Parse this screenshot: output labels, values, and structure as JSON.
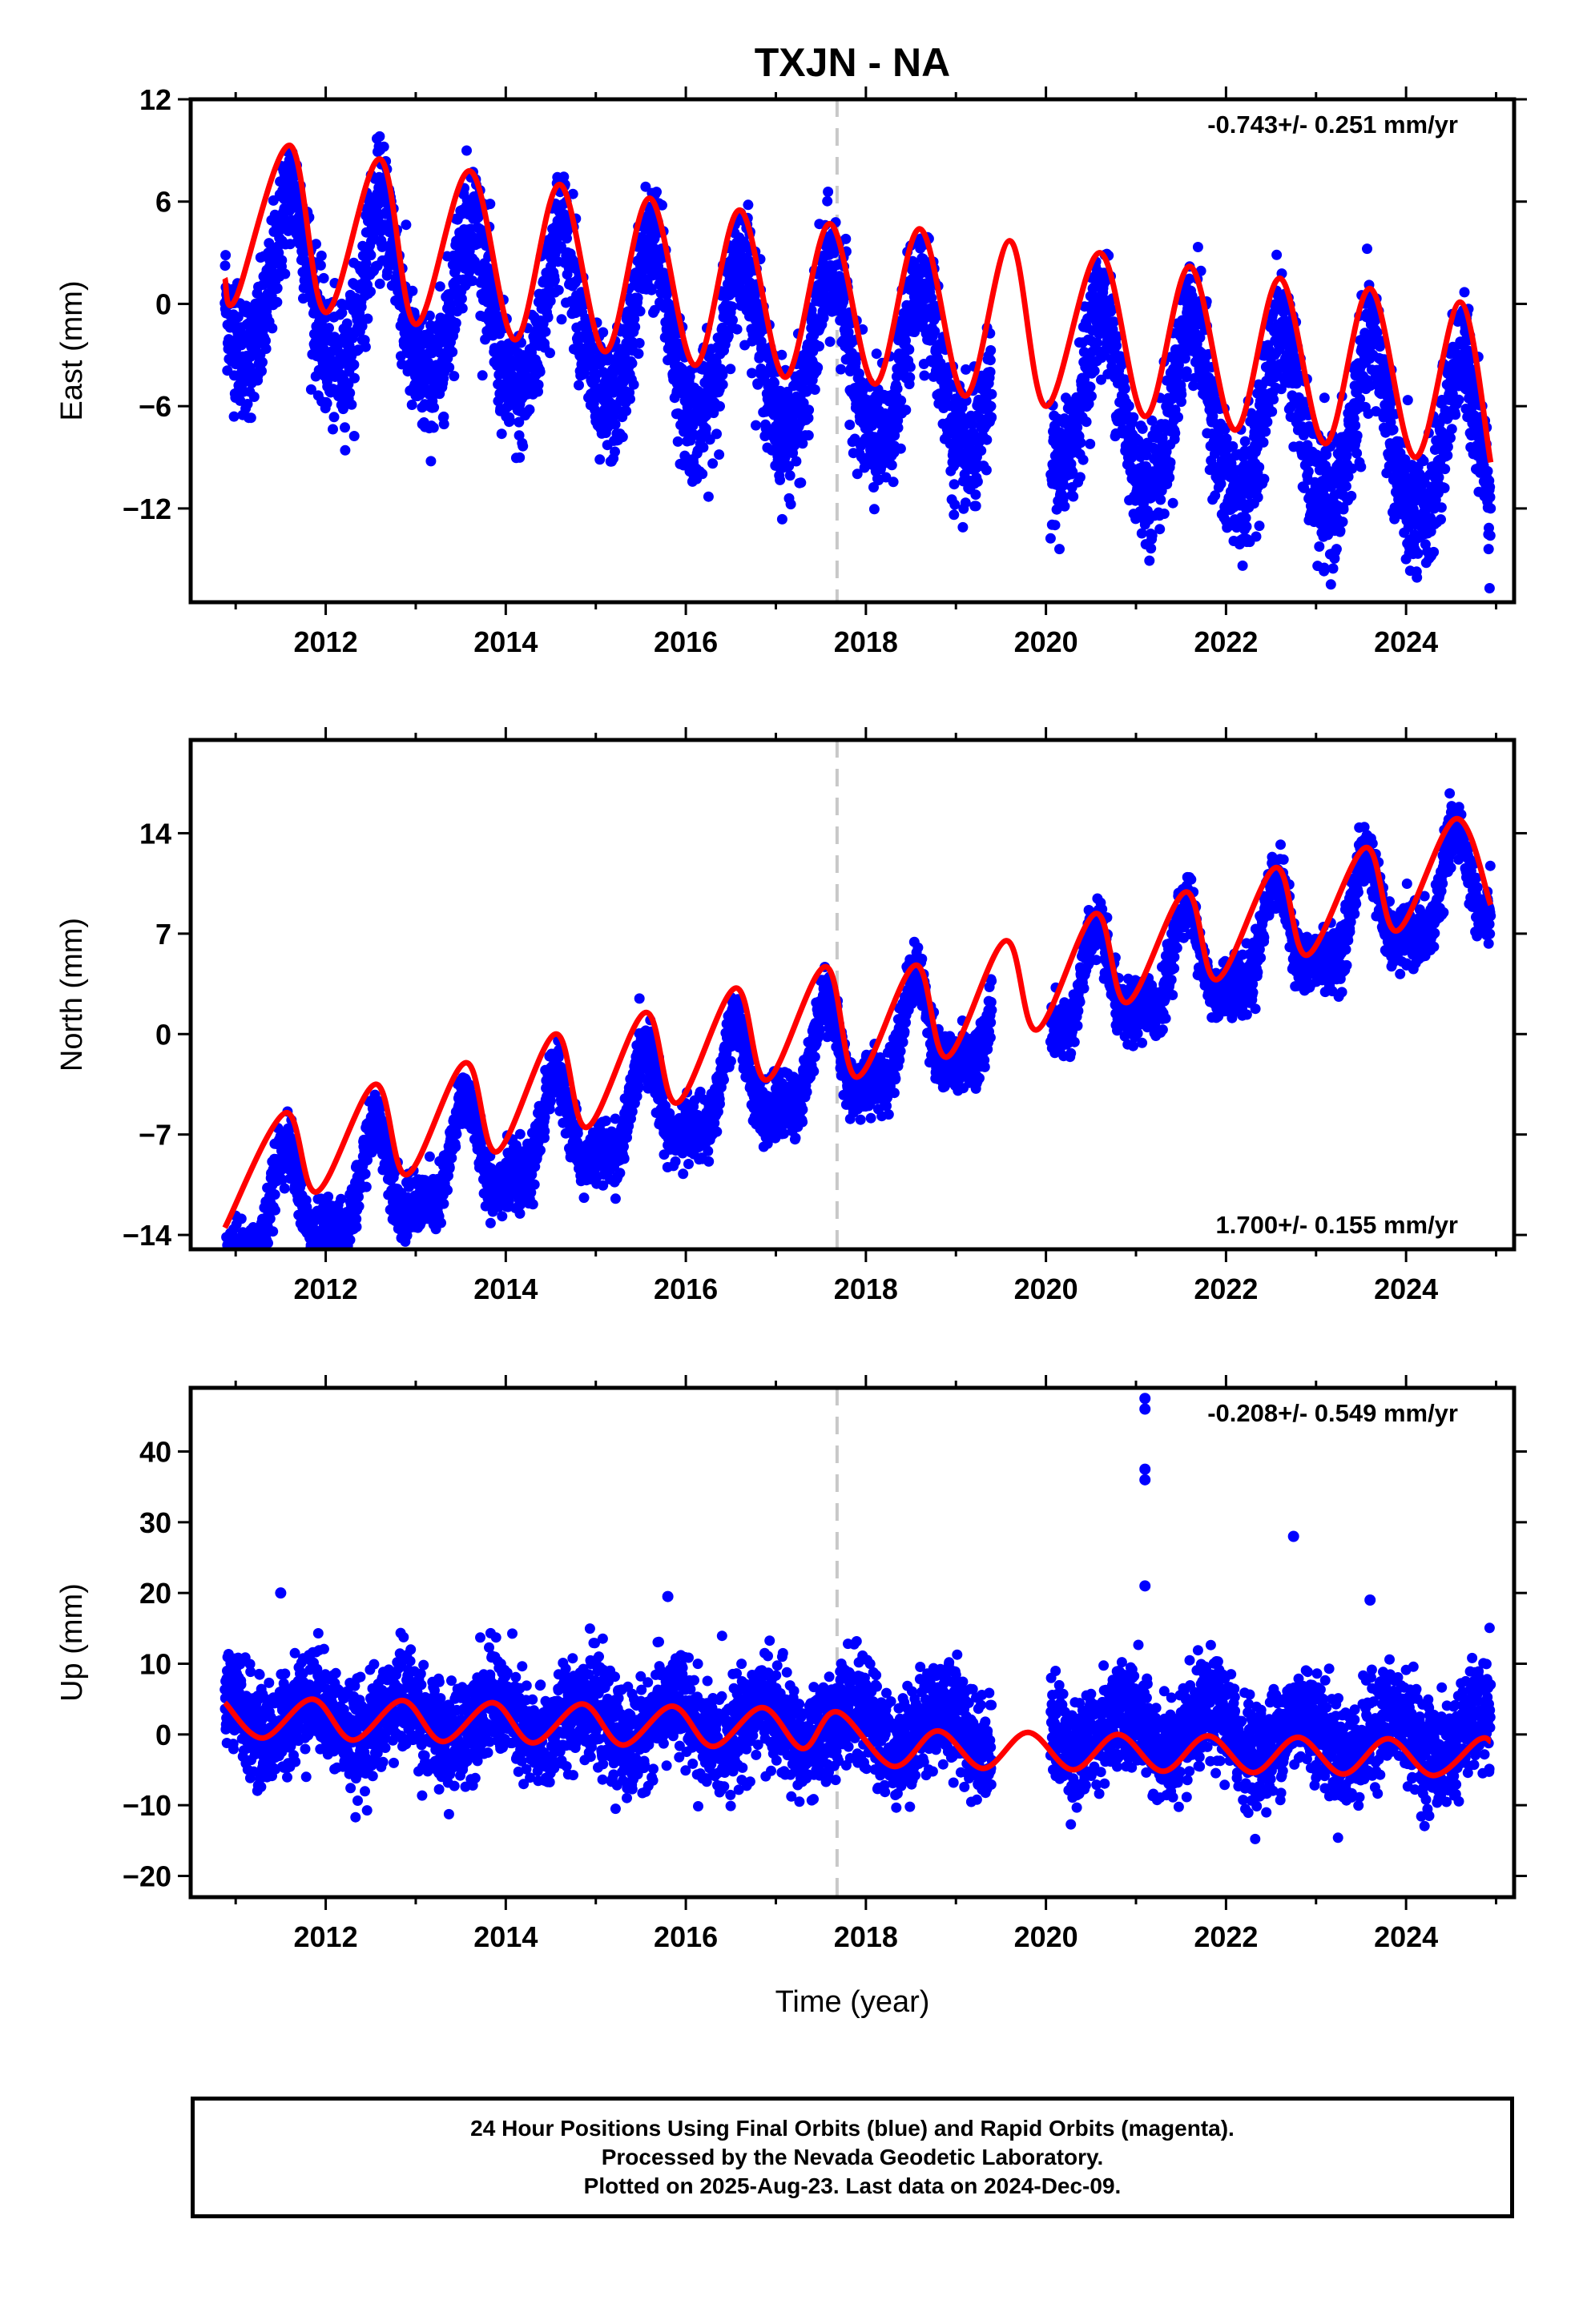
{
  "title": "TXJN - NA",
  "xlabel": "Time (year)",
  "colors": {
    "final_orbits": "#0000ff",
    "model": "#ff0000",
    "break_line": "#c8c8c8"
  },
  "caption": {
    "line1": "24 Hour Positions Using Final Orbits (blue) and Rapid Orbits (magenta).",
    "line2": "Processed by the Nevada Geodetic Laboratory.",
    "line3": "Plotted on 2025-Aug-23. Last data on 2024-Dec-09."
  },
  "chart_data": [
    {
      "type": "scatter",
      "component": "east",
      "ylabel": "East (mm)",
      "xlim": [
        2010.5,
        2025.2
      ],
      "ylim": [
        -17.5,
        12
      ],
      "xticks": [
        2012,
        2014,
        2016,
        2018,
        2020,
        2022,
        2024
      ],
      "yticks": [
        -12,
        -6,
        0,
        6,
        12
      ],
      "ytick_labels": [
        "−12",
        "−6",
        "0",
        "6",
        "12"
      ],
      "rate_label": "-0.743+/- 0.251 mm/yr",
      "rate_position": "top-right",
      "data_span": [
        2010.88,
        2024.94
      ],
      "data_gap": [
        2019.4,
        2020.05
      ],
      "break_epoch": 2017.68,
      "model": {
        "rate": -0.743,
        "offset_at_2010_9": 1.5,
        "annual_amplitude": 5.0,
        "annual_peak": 2011.62,
        "semiannual_amplitude": 0.6,
        "scatter_sigma": 1.8
      },
      "model_curve_x": [
        2010.88,
        2011.0,
        2011.6,
        2012.0,
        2012.6,
        2013.0,
        2013.6,
        2014.1,
        2014.6,
        2015.1,
        2015.6,
        2016.1,
        2016.6,
        2017.1,
        2017.6,
        2018.1,
        2018.6,
        2019.1,
        2019.6,
        2020.0,
        2020.6,
        2021.1,
        2021.6,
        2022.1,
        2022.6,
        2023.1,
        2023.6,
        2024.1,
        2024.6,
        2024.94
      ],
      "model_curve_y": [
        1.5,
        0.3,
        9.3,
        -0.5,
        8.5,
        -1.2,
        7.8,
        -2.1,
        7.0,
        -2.8,
        6.2,
        -3.6,
        5.5,
        -4.3,
        4.7,
        -4.7,
        4.4,
        -5.4,
        3.7,
        -6.0,
        3.0,
        -6.6,
        2.2,
        -7.4,
        1.5,
        -8.2,
        0.9,
        -9.0,
        0.1,
        -9.3
      ]
    },
    {
      "type": "scatter",
      "component": "north",
      "ylabel": "North (mm)",
      "xlim": [
        2010.5,
        2025.2
      ],
      "ylim": [
        -15,
        20.5
      ],
      "xticks": [
        2012,
        2014,
        2016,
        2018,
        2020,
        2022,
        2024
      ],
      "yticks": [
        -14,
        -7,
        0,
        7,
        14
      ],
      "ytick_labels": [
        "−14",
        "−7",
        "0",
        "7",
        "14"
      ],
      "rate_label": "1.700+/- 0.155 mm/yr",
      "rate_position": "bottom-right",
      "data_span": [
        2010.88,
        2024.94
      ],
      "data_gap": [
        2019.4,
        2020.05
      ],
      "break_epoch": 2017.68,
      "model": {
        "rate": 1.7,
        "offset_at_2010_9": -13.5,
        "annual_amplitude": 3.2,
        "annual_peak": 2011.55,
        "semiannual_amplitude": 1.4,
        "scatter_sigma": 1.0
      },
      "model_curve_x": [
        2010.88,
        2011.55,
        2011.9,
        2012.55,
        2012.9,
        2013.55,
        2013.9,
        2014.55,
        2014.9,
        2015.55,
        2015.9,
        2016.55,
        2016.9,
        2017.55,
        2017.9,
        2018.55,
        2018.9,
        2019.55,
        2019.9,
        2020.55,
        2020.9,
        2021.55,
        2021.9,
        2022.55,
        2022.9,
        2023.55,
        2023.9,
        2024.55,
        2024.94
      ],
      "model_curve_y": [
        -13.5,
        -5.5,
        -11.0,
        -3.5,
        -9.8,
        -2.0,
        -8.2,
        0.0,
        -6.5,
        1.5,
        -4.8,
        3.2,
        -3.2,
        4.7,
        -3.0,
        4.8,
        -1.6,
        6.5,
        0.3,
        8.4,
        2.2,
        9.9,
        3.8,
        11.6,
        5.5,
        13.0,
        7.2,
        15.0,
        9.0
      ]
    },
    {
      "type": "scatter",
      "component": "up",
      "ylabel": "Up (mm)",
      "xlabel": "Time (year)",
      "xlim": [
        2010.5,
        2025.2
      ],
      "ylim": [
        -23,
        49
      ],
      "xticks": [
        2012,
        2014,
        2016,
        2018,
        2020,
        2022,
        2024
      ],
      "yticks": [
        -20,
        -10,
        0,
        10,
        20,
        30,
        40
      ],
      "ytick_labels": [
        "−20",
        "−10",
        "0",
        "10",
        "20",
        "30",
        "40"
      ],
      "rate_label": "-0.208+/- 0.549 mm/yr",
      "rate_position": "top-right",
      "data_span": [
        2010.88,
        2024.94
      ],
      "data_gap": [
        2019.4,
        2020.05
      ],
      "break_epoch": 2017.68,
      "model": {
        "rate": -0.208,
        "offset_at_2010_9": 2.5,
        "annual_amplitude": 3.0,
        "annual_peak": 2011.85,
        "scatter_sigma": 3.6
      },
      "model_curve_x": [
        2010.88,
        2011.3,
        2011.85,
        2012.3,
        2012.85,
        2013.3,
        2013.85,
        2014.3,
        2014.85,
        2015.3,
        2015.85,
        2016.3,
        2016.85,
        2017.3,
        2017.68,
        2018.3,
        2018.8,
        2019.3,
        2019.8,
        2020.3,
        2020.8,
        2021.3,
        2021.8,
        2022.3,
        2022.8,
        2023.3,
        2023.8,
        2024.3,
        2024.8,
        2024.94
      ],
      "model_curve_y": [
        4.5,
        -0.5,
        5.0,
        -0.8,
        4.8,
        -1.0,
        4.5,
        -1.2,
        4.3,
        -1.5,
        4.0,
        -1.7,
        3.8,
        -2.0,
        3.2,
        -4.5,
        0.5,
        -4.8,
        0.3,
        -5.0,
        0.0,
        -5.2,
        -0.2,
        -5.4,
        -0.4,
        -5.6,
        -0.6,
        -5.8,
        -0.8,
        -1.0
      ],
      "outliers": [
        {
          "x": 2021.1,
          "y": 47.5
        },
        {
          "x": 2021.1,
          "y": 46.0
        },
        {
          "x": 2021.1,
          "y": 37.5
        },
        {
          "x": 2021.1,
          "y": 36.0
        },
        {
          "x": 2021.1,
          "y": 21.0
        },
        {
          "x": 2022.75,
          "y": 28.0
        },
        {
          "x": 2023.6,
          "y": 19.0
        },
        {
          "x": 2015.8,
          "y": 19.5
        },
        {
          "x": 2011.5,
          "y": 20.0
        }
      ]
    }
  ]
}
